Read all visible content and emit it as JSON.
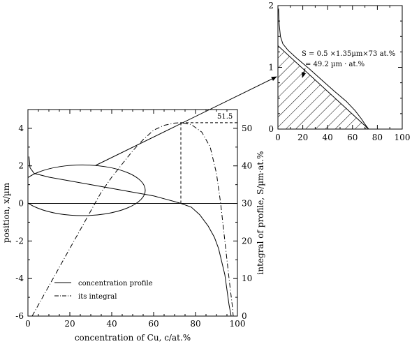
{
  "chart_data": [
    {
      "type": "line",
      "xlabel": "concentration of Cu, c/at.%",
      "ylabel": "position, x/µm",
      "y2label": "integral of profile, S/µm·at.%",
      "xlim": [
        0,
        100
      ],
      "ylim": [
        -6,
        5
      ],
      "y2lim": [
        0,
        55
      ],
      "x_ticks": [
        "0",
        "20",
        "40",
        "60",
        "80",
        "100"
      ],
      "y_ticks": [
        "-6",
        "-4",
        "-2",
        "0",
        "2",
        "4"
      ],
      "y2_ticks": [
        "0",
        "10",
        "20",
        "30",
        "40",
        "50"
      ],
      "annotation": "51.5",
      "legend": {
        "placement": "bottom-left",
        "entries": [
          "concentration profile",
          "its integral"
        ]
      },
      "series": [
        {
          "name": "concentration profile",
          "style": "solid",
          "points": [
            [
              0.5,
              2.5
            ],
            [
              1,
              1.9
            ],
            [
              3,
              1.6
            ],
            [
              10,
              1.4
            ],
            [
              20,
              1.2
            ],
            [
              30,
              1.0
            ],
            [
              40,
              0.8
            ],
            [
              50,
              0.6
            ],
            [
              60,
              0.4
            ],
            [
              65,
              0.25
            ],
            [
              70,
              0.1
            ],
            [
              73,
              0
            ],
            [
              78,
              -0.2
            ],
            [
              82,
              -0.6
            ],
            [
              86,
              -1.2
            ],
            [
              89,
              -1.8
            ],
            [
              91,
              -2.4
            ],
            [
              92.5,
              -3.1
            ],
            [
              94,
              -3.8
            ],
            [
              95,
              -4.6
            ],
            [
              96,
              -5.4
            ],
            [
              97,
              -6
            ]
          ]
        },
        {
          "name": "its integral",
          "style": "dashdot",
          "y_axis": "right",
          "points": [
            [
              2,
              0
            ],
            [
              5,
              3
            ],
            [
              10,
              8
            ],
            [
              15,
              13
            ],
            [
              20,
              18
            ],
            [
              25,
              23
            ],
            [
              30,
              28
            ],
            [
              35,
              33
            ],
            [
              40,
              37
            ],
            [
              45,
              40.5
            ],
            [
              50,
              44
            ],
            [
              55,
              47
            ],
            [
              60,
              49.5
            ],
            [
              65,
              50.8
            ],
            [
              70,
              51.4
            ],
            [
              73,
              51.5
            ],
            [
              78,
              51
            ],
            [
              83,
              49
            ],
            [
              87,
              45
            ],
            [
              90,
              38
            ],
            [
              92,
              30
            ],
            [
              94,
              20
            ],
            [
              96,
              10
            ],
            [
              97.5,
              3
            ],
            [
              98,
              0
            ]
          ]
        }
      ],
      "reference_lines": {
        "vertical_at_x": 73,
        "horizontal_at_x": 0,
        "horizontal_at_y2": 51.5
      },
      "ellipse": {
        "cx": 26,
        "cy": 0.7,
        "rx": 30,
        "ry": 1.35
      }
    },
    {
      "type": "area",
      "xlim": [
        0,
        100
      ],
      "ylim": [
        0,
        2
      ],
      "x_ticks": [
        "0",
        "20",
        "40",
        "60",
        "80",
        "100"
      ],
      "y_ticks": [
        "0",
        "1",
        "2"
      ],
      "annotation_line1": "S = 0.5 ×1.35µm×73 at.%",
      "annotation_line2": "= 49.2 µm · at.%",
      "profile": [
        [
          0.5,
          1.95
        ],
        [
          1,
          1.7
        ],
        [
          2,
          1.5
        ],
        [
          4,
          1.38
        ],
        [
          8,
          1.28
        ],
        [
          15,
          1.15
        ],
        [
          25,
          0.98
        ],
        [
          35,
          0.8
        ],
        [
          45,
          0.62
        ],
        [
          55,
          0.45
        ],
        [
          62,
          0.3
        ],
        [
          67,
          0.17
        ],
        [
          70,
          0.08
        ],
        [
          73,
          0
        ]
      ],
      "triangle": [
        [
          0,
          1.35
        ],
        [
          73,
          0
        ],
        [
          0,
          0
        ]
      ]
    }
  ]
}
